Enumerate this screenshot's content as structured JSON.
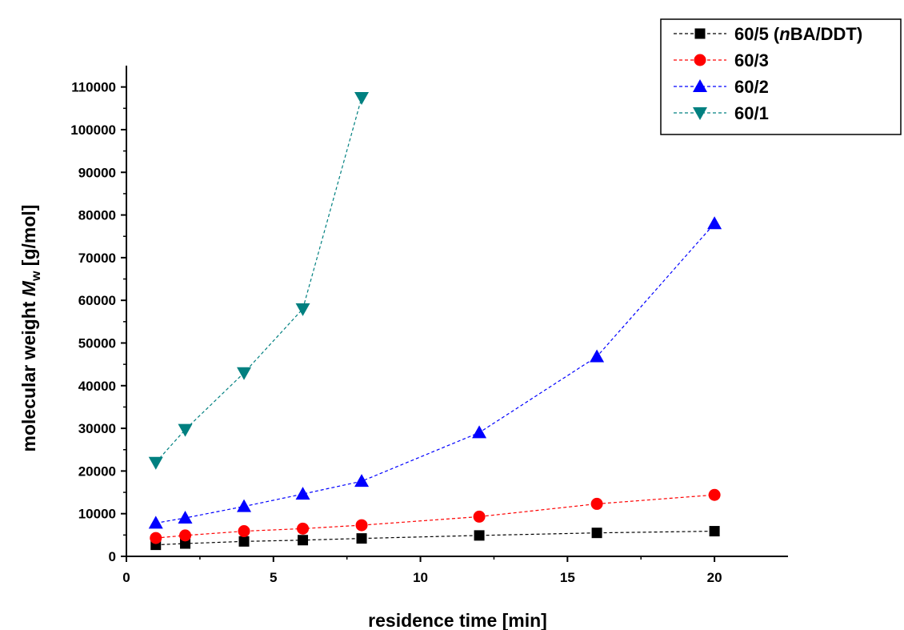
{
  "chart_data": {
    "type": "line",
    "title": "",
    "xlabel": "residence time [min]",
    "ylabel_prefix": "molecular weight ",
    "ylabel_var": "M",
    "ylabel_sub": "w",
    "ylabel_suffix": " [g/mol]",
    "xlim": [
      0,
      22.5
    ],
    "ylim": [
      0,
      115000
    ],
    "x_ticks": [
      0,
      5,
      10,
      15,
      20
    ],
    "y_ticks": [
      0,
      10000,
      20000,
      30000,
      40000,
      50000,
      60000,
      70000,
      80000,
      90000,
      100000,
      110000
    ],
    "grid": false,
    "legend_position": "top-right",
    "series": [
      {
        "name_prefix": "60/5 (",
        "name_italic": "n",
        "name_suffix": "BA/DDT)",
        "color": "#000000",
        "marker": "square",
        "x": [
          1,
          2,
          4,
          6,
          8,
          12,
          16,
          20
        ],
        "y": [
          2700,
          3000,
          3500,
          3800,
          4200,
          4900,
          5500,
          5900
        ]
      },
      {
        "name_prefix": "60/3",
        "name_italic": "",
        "name_suffix": "",
        "color": "#ff0000",
        "marker": "circle",
        "x": [
          1,
          2,
          4,
          6,
          8,
          12,
          16,
          20
        ],
        "y": [
          4300,
          4900,
          5900,
          6500,
          7300,
          9300,
          12300,
          14400
        ]
      },
      {
        "name_prefix": "60/2",
        "name_italic": "",
        "name_suffix": "",
        "color": "#0000ff",
        "marker": "triangle-up",
        "x": [
          1,
          2,
          4,
          6,
          8,
          12,
          16,
          20
        ],
        "y": [
          7800,
          9000,
          11700,
          14600,
          17600,
          29000,
          46800,
          78000
        ]
      },
      {
        "name_prefix": "60/1",
        "name_italic": "",
        "name_suffix": "",
        "color": "#008080",
        "marker": "triangle-down",
        "x": [
          1,
          2,
          4,
          6,
          8
        ],
        "y": [
          22000,
          29700,
          43000,
          58000,
          107500
        ]
      }
    ]
  }
}
